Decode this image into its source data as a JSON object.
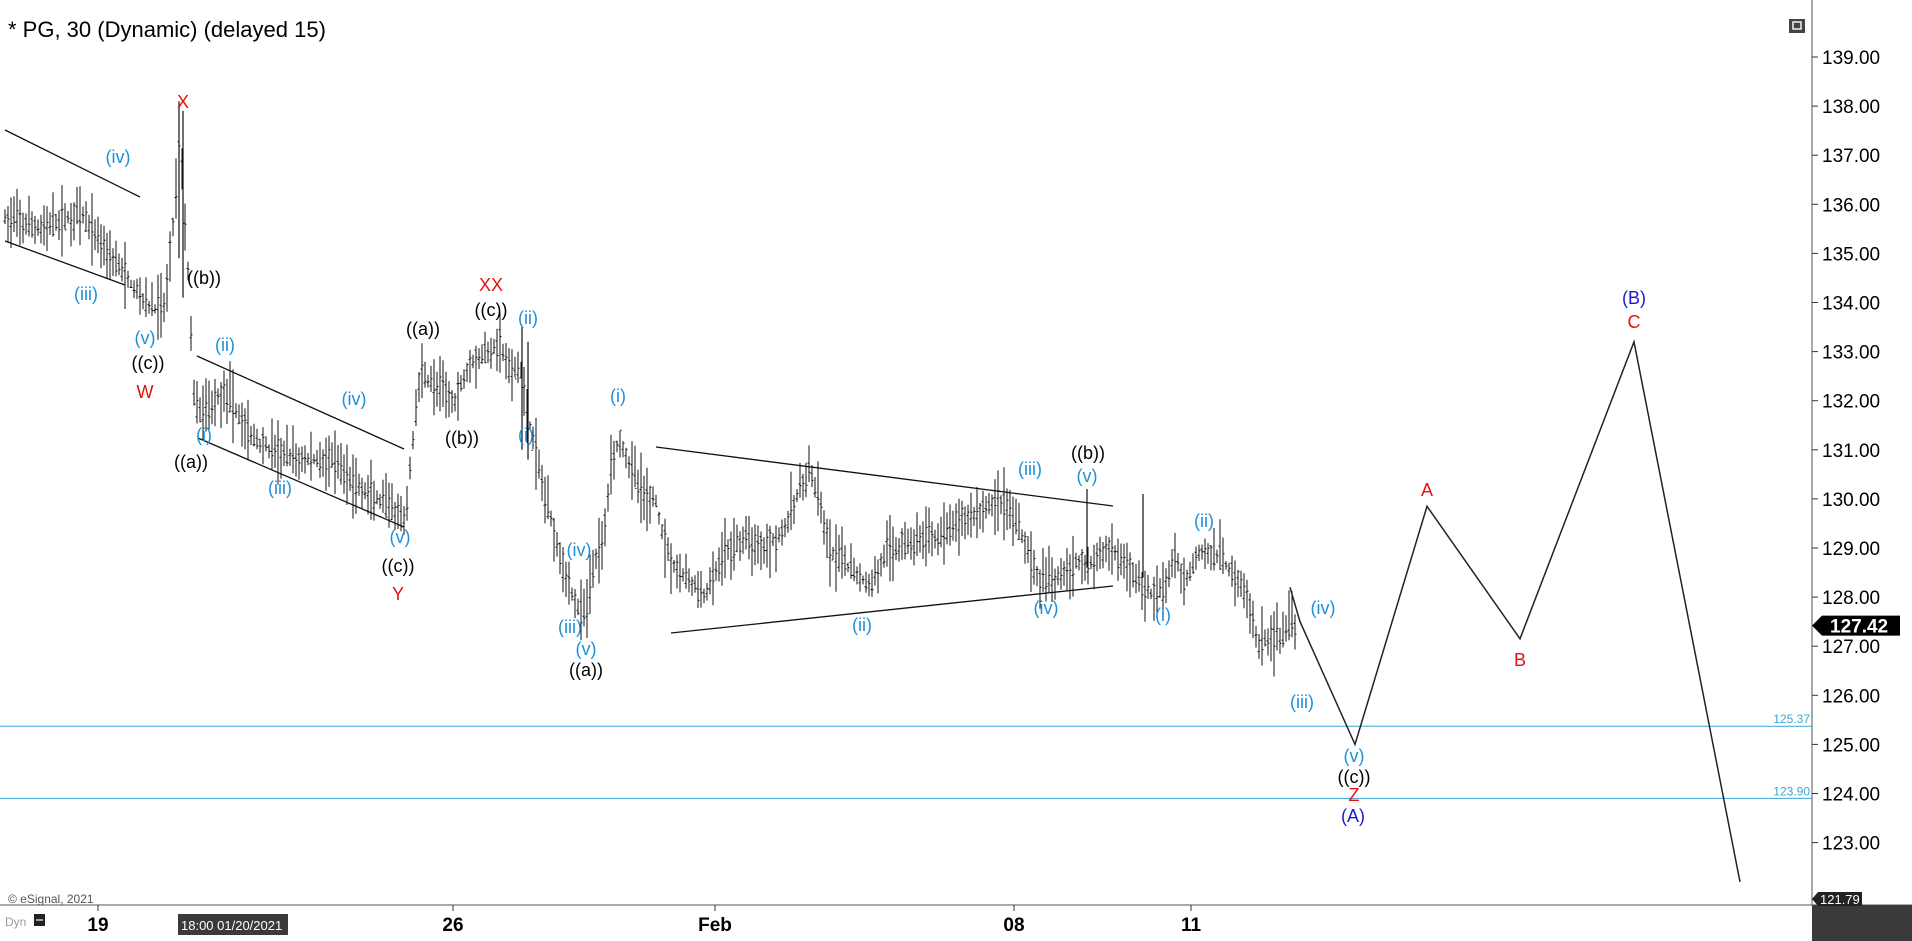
{
  "title": "* PG, 30 (Dynamic) (delayed 15)",
  "copyright": "© eSignal, 2021",
  "bottom_left_label": "Dyn",
  "crosshair_time": "18:00 01/20/2021",
  "colors": {
    "red": "#e8100f",
    "blue": "#1e90d8",
    "navy": "#1a1ad0",
    "black": "#000000",
    "hline": "#3aa6d8"
  },
  "chart_data": {
    "type": "line",
    "y_axis": {
      "ticks": [
        "139.00",
        "138.00",
        "137.00",
        "136.00",
        "135.00",
        "134.00",
        "133.00",
        "132.00",
        "131.00",
        "130.00",
        "129.00",
        "128.00",
        "127.00",
        "126.00",
        "125.00",
        "124.00",
        "123.00"
      ],
      "ylim": [
        121.3,
        140.0
      ]
    },
    "x_axis": {
      "ticks": [
        "19",
        "26",
        "Feb",
        "08",
        "11"
      ]
    },
    "last_price": "127.42",
    "bottom_price": "121.79",
    "horizontal_lines": [
      {
        "value": 125.37,
        "label": "125.37"
      },
      {
        "value": 123.9,
        "label": "123.90"
      }
    ],
    "projection_path": {
      "points": [
        {
          "x": "i0",
          "y": 128.2
        },
        {
          "x": "i1",
          "y": 127.5
        },
        {
          "x": "i2",
          "y": 125.0
        },
        {
          "x": "i3",
          "y": 129.85
        },
        {
          "x": "i4",
          "y": 127.15
        },
        {
          "x": "i5",
          "y": 133.2
        },
        {
          "x": "i6",
          "y": 122.2
        }
      ]
    },
    "wave_labels": [
      {
        "text": "X",
        "color": "red"
      },
      {
        "text": "(iv)",
        "color": "blue"
      },
      {
        "text": "(iii)",
        "color": "blue"
      },
      {
        "text": "(v)",
        "color": "blue"
      },
      {
        "text": "((c))",
        "color": "black"
      },
      {
        "text": "W",
        "color": "red"
      },
      {
        "text": "((b))",
        "color": "black"
      },
      {
        "text": "(ii)",
        "color": "blue"
      },
      {
        "text": "(i)",
        "color": "blue"
      },
      {
        "text": "((a))",
        "color": "black"
      },
      {
        "text": "(iii)",
        "color": "blue"
      },
      {
        "text": "(iv)",
        "color": "blue"
      },
      {
        "text": "(v)",
        "color": "blue"
      },
      {
        "text": "((c))",
        "color": "black"
      },
      {
        "text": "Y",
        "color": "red"
      },
      {
        "text": "((a))",
        "color": "black"
      },
      {
        "text": "XX",
        "color": "red"
      },
      {
        "text": "((c))",
        "color": "black"
      },
      {
        "text": "((b))",
        "color": "black"
      },
      {
        "text": "(ii)",
        "color": "blue"
      },
      {
        "text": "(i)",
        "color": "blue"
      },
      {
        "text": "(iv)",
        "color": "blue"
      },
      {
        "text": "(iii)",
        "color": "blue"
      },
      {
        "text": "(v)",
        "color": "blue"
      },
      {
        "text": "((a))",
        "color": "black"
      },
      {
        "text": "(i)",
        "color": "blue"
      },
      {
        "text": "(ii)",
        "color": "blue"
      },
      {
        "text": "(iii)",
        "color": "blue"
      },
      {
        "text": "((b))",
        "color": "black"
      },
      {
        "text": "(v)",
        "color": "blue"
      },
      {
        "text": "(iv)",
        "color": "blue"
      },
      {
        "text": "(i)",
        "color": "blue"
      },
      {
        "text": "(ii)",
        "color": "blue"
      },
      {
        "text": "(iv)",
        "color": "blue"
      },
      {
        "text": "(iii)",
        "color": "blue"
      },
      {
        "text": "(v)",
        "color": "blue"
      },
      {
        "text": "((c))",
        "color": "black"
      },
      {
        "text": "Z",
        "color": "red"
      },
      {
        "text": "(A)",
        "color": "navy"
      },
      {
        "text": "A",
        "color": "red"
      },
      {
        "text": "B",
        "color": "red"
      },
      {
        "text": "(B)",
        "color": "navy"
      },
      {
        "text": "C",
        "color": "red"
      }
    ]
  }
}
